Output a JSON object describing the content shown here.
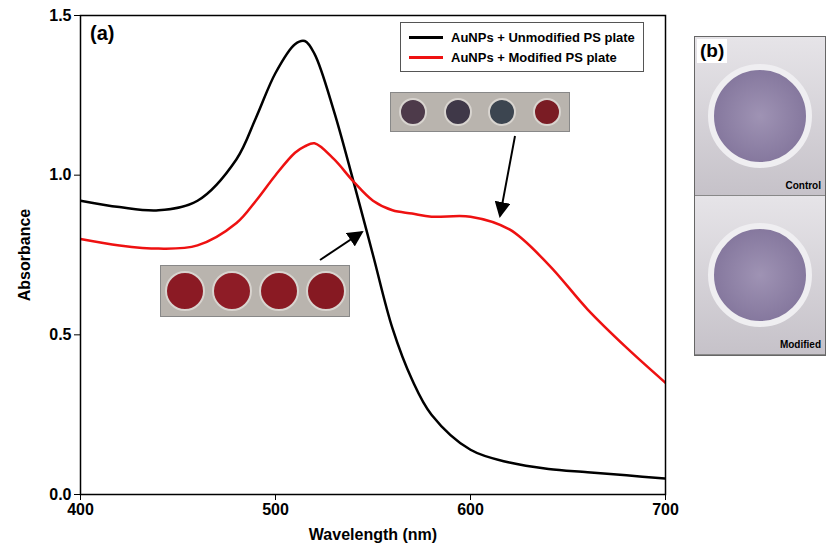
{
  "chart_data": {
    "type": "line",
    "title": "(a)",
    "x_label": "Wavelength (nm)",
    "y_label": "Absorbance",
    "x": [
      400,
      420,
      440,
      460,
      480,
      490,
      500,
      510,
      515,
      520,
      530,
      540,
      550,
      560,
      570,
      580,
      600,
      620,
      640,
      660,
      680,
      700
    ],
    "series": [
      {
        "name": "AuNPs + Unmodified PS plate",
        "color": "#000000",
        "values": [
          0.92,
          0.9,
          0.89,
          0.92,
          1.05,
          1.18,
          1.32,
          1.41,
          1.42,
          1.38,
          1.2,
          0.98,
          0.75,
          0.52,
          0.36,
          0.25,
          0.14,
          0.1,
          0.08,
          0.07,
          0.06,
          0.05
        ]
      },
      {
        "name": "AuNPs + Modified PS plate",
        "color": "#ee1111",
        "values": [
          0.8,
          0.78,
          0.77,
          0.78,
          0.85,
          0.92,
          1.0,
          1.07,
          1.09,
          1.1,
          1.05,
          0.98,
          0.92,
          0.89,
          0.88,
          0.87,
          0.87,
          0.83,
          0.72,
          0.58,
          0.46,
          0.35
        ]
      }
    ],
    "xlim": [
      400,
      700
    ],
    "xticks": [
      400,
      500,
      600,
      700
    ],
    "ylim": [
      0,
      1.5
    ],
    "yticks": [
      {
        "value": 0,
        "label": "0.0"
      },
      0.5,
      {
        "value": 1,
        "label": "1.0"
      },
      1.5
    ],
    "legend": "upper right",
    "grid": false
  },
  "panel_b": {
    "label": "(b)",
    "images": [
      "Control",
      "Modified"
    ]
  }
}
